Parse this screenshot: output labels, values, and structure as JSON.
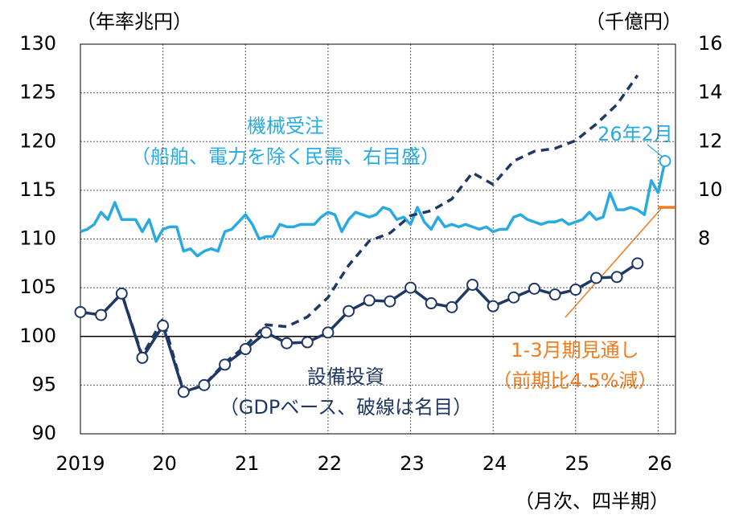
{
  "chart_data": {
    "type": "line",
    "y_unit": "（年率兆円）",
    "y2_unit": "（千億円）",
    "x_unit": "（月次、四半期）",
    "xlim": [
      2019,
      2026.21
    ],
    "xticks": [
      {
        "value": 2019,
        "label": "2019"
      },
      {
        "value": 2020,
        "label": "20"
      },
      {
        "value": 2021,
        "label": "21"
      },
      {
        "value": 2022,
        "label": "22"
      },
      {
        "value": 2023,
        "label": "23"
      },
      {
        "value": 2024,
        "label": "24"
      },
      {
        "value": 2025,
        "label": "25"
      },
      {
        "value": 2026,
        "label": "26"
      }
    ],
    "ylim": [
      90,
      130
    ],
    "yticks": [
      90,
      95,
      100,
      105,
      110,
      115,
      120,
      125,
      130
    ],
    "y2lim": [
      0,
      16
    ],
    "y2ticks": [
      8,
      10,
      12,
      14,
      16
    ],
    "grid": true,
    "hline": 100,
    "annotations": [
      "機械受注",
      "（船舶、電力を除く民需、右目盛）",
      "26年2月",
      "設備投資",
      "（GDPベース、破線は名目）",
      "1-3月期見通し",
      "（前期比4.5%減）"
    ],
    "series": [
      {
        "color": "#29abe2",
        "axis": "y2",
        "marker_last": true,
        "x": [
          2019,
          2019.0833,
          2019.1667,
          2019.25,
          2019.3333,
          2019.4167,
          2019.5,
          2019.5833,
          2019.6667,
          2019.75,
          2019.8333,
          2019.9167,
          2020,
          2020.0833,
          2020.1667,
          2020.25,
          2020.3333,
          2020.4167,
          2020.5,
          2020.5833,
          2020.6667,
          2020.75,
          2020.8333,
          2020.9167,
          2021,
          2021.0833,
          2021.1667,
          2021.25,
          2021.3333,
          2021.4167,
          2021.5,
          2021.5833,
          2021.6667,
          2021.75,
          2021.8333,
          2021.9167,
          2022,
          2022.0833,
          2022.1667,
          2022.25,
          2022.3333,
          2022.4167,
          2022.5,
          2022.5833,
          2022.6667,
          2022.75,
          2022.8333,
          2022.9167,
          2023,
          2023.0833,
          2023.1667,
          2023.25,
          2023.3333,
          2023.4167,
          2023.5,
          2023.5833,
          2023.6667,
          2023.75,
          2023.8333,
          2023.9167,
          2024,
          2024.0833,
          2024.1667,
          2024.25,
          2024.3333,
          2024.4167,
          2024.5,
          2024.5833,
          2024.6667,
          2024.75,
          2024.8333,
          2024.9167,
          2025,
          2025.0833,
          2025.1667,
          2025.25,
          2025.3333,
          2025.4167,
          2025.5,
          2025.5833,
          2025.6667,
          2025.75,
          2025.8333,
          2025.9167,
          2026,
          2026.0833
        ],
        "values": [
          8.3,
          8.4,
          8.6,
          9.1,
          8.8,
          9.5,
          8.8,
          8.8,
          8.8,
          8.3,
          8.8,
          7.9,
          8.4,
          8.5,
          8.5,
          7.5,
          7.6,
          7.3,
          7.5,
          7.6,
          7.5,
          8.3,
          8.4,
          8.7,
          9.0,
          8.6,
          8.0,
          8.1,
          8.1,
          8.6,
          8.5,
          8.5,
          8.6,
          8.6,
          8.6,
          8.9,
          9.1,
          9.0,
          8.3,
          8.8,
          9.1,
          9.0,
          8.9,
          9.0,
          9.3,
          9.2,
          8.8,
          8.9,
          8.6,
          9.3,
          8.7,
          8.4,
          8.9,
          8.5,
          8.6,
          8.5,
          8.6,
          8.5,
          8.4,
          8.5,
          8.3,
          8.4,
          8.4,
          8.9,
          9.0,
          8.8,
          8.7,
          8.6,
          8.7,
          8.7,
          8.8,
          8.6,
          8.7,
          8.8,
          9.1,
          8.8,
          8.9,
          9.9,
          9.2,
          9.2,
          9.3,
          9.2,
          9.0,
          10.4,
          9.9,
          11.2
        ]
      },
      {
        "color": "#1f3864",
        "axis": "y",
        "dash": true,
        "x": [
          2019,
          2019.25,
          2019.5,
          2019.75,
          2020,
          2020.25,
          2020.5,
          2020.75,
          2021,
          2021.25,
          2021.5,
          2021.75,
          2022,
          2022.25,
          2022.5,
          2022.75,
          2023,
          2023.25,
          2023.5,
          2023.75,
          2024,
          2024.25,
          2024.5,
          2024.75,
          2025,
          2025.25,
          2025.5,
          2025.75
        ],
        "values": [
          102.5,
          102.2,
          104.4,
          98.0,
          101.8,
          94.3,
          95.0,
          97.3,
          99.0,
          101.2,
          101.0,
          102.0,
          104.0,
          107.3,
          109.8,
          110.6,
          112.4,
          112.9,
          114.1,
          116.8,
          115.6,
          118.0,
          119.0,
          119.3,
          120.1,
          121.8,
          123.8,
          126.8
        ]
      },
      {
        "color": "#1f3864",
        "axis": "y",
        "marker": "circle",
        "x": [
          2019,
          2019.25,
          2019.5,
          2019.75,
          2020,
          2020.25,
          2020.5,
          2020.75,
          2021,
          2021.25,
          2021.5,
          2021.75,
          2022,
          2022.25,
          2022.5,
          2022.75,
          2023,
          2023.25,
          2023.5,
          2023.75,
          2024,
          2024.25,
          2024.5,
          2024.75,
          2025,
          2025.25,
          2025.5,
          2025.75
        ],
        "values": [
          102.5,
          102.2,
          104.4,
          97.8,
          101.1,
          94.3,
          95.0,
          97.1,
          98.7,
          100.4,
          99.3,
          99.4,
          100.4,
          102.6,
          103.7,
          103.6,
          105.0,
          103.4,
          103.0,
          105.3,
          103.1,
          104.0,
          104.9,
          104.3,
          104.8,
          106.0,
          106.1,
          107.5
        ]
      },
      {
        "color": "#f07c1e",
        "axis": "y2",
        "x": [
          2026,
          2026.2
        ],
        "values": [
          9.3,
          9.3
        ]
      }
    ]
  }
}
